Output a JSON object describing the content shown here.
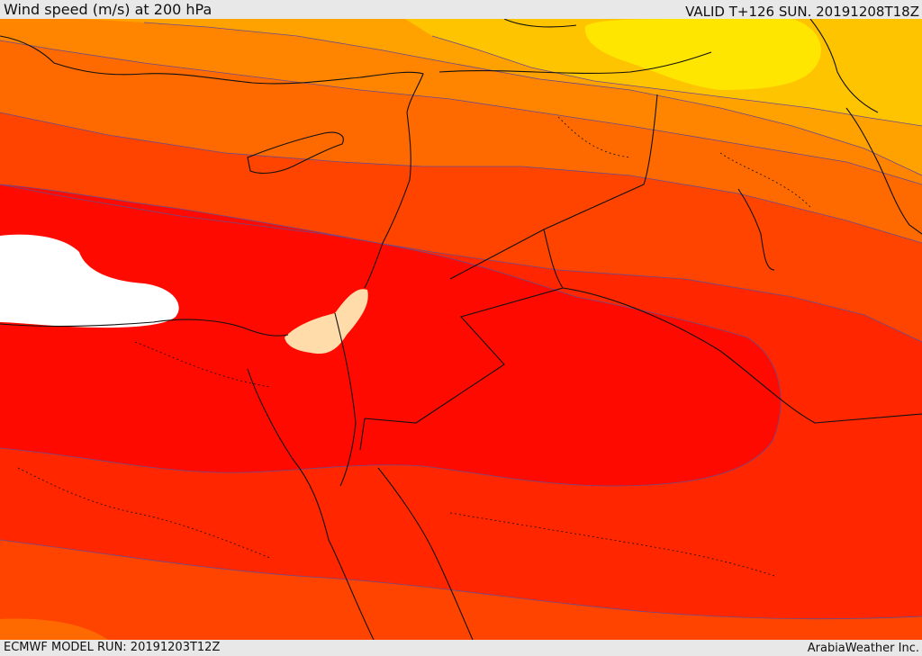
{
  "header": {
    "title": "Wind speed (m/s) at 200 hPa",
    "valid_time": "VALID T+126 SUN. 20191208T18Z"
  },
  "footer": {
    "model_run": "ECMWF MODEL RUN: 20191203T12Z",
    "credit": "ArabiaWeather Inc."
  },
  "map": {
    "colors": {
      "band_darkest_orange": "#ff6a00",
      "band_orange": "#ff8400",
      "band_amber": "#ffa200",
      "band_light_amber": "#ffc400",
      "band_yellow": "#ffe600",
      "band_red_orange": "#ff4400",
      "band_orange_red": "#ff2600",
      "band_red": "#ff0a00",
      "low_wind_white": "#ffffff",
      "low_wind_peach": "#ffdcaa",
      "coastline": "#111111",
      "contour": "#6c4a8a"
    }
  }
}
